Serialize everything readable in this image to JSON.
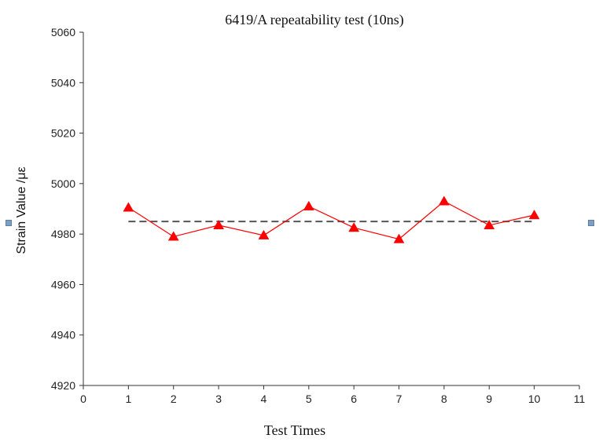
{
  "chart_data": {
    "type": "line",
    "title": "6419/A repeatability test (10ns)",
    "xlabel": "Test Times",
    "ylabel": "Strain Value /με",
    "xlim": [
      0,
      11
    ],
    "ylim": [
      4920,
      5060
    ],
    "x_ticks": [
      0,
      1,
      2,
      3,
      4,
      5,
      6,
      7,
      8,
      9,
      10,
      11
    ],
    "y_ticks": [
      4920,
      4940,
      4960,
      4980,
      5000,
      5020,
      5040,
      5060
    ],
    "grid": false,
    "legend": "none",
    "series": [
      {
        "color": "#ff0000",
        "marker": "triangle",
        "x": [
          1,
          2,
          3,
          4,
          5,
          6,
          7,
          8,
          9,
          10
        ],
        "y": [
          4990.5,
          4979,
          4983.5,
          4979.5,
          4991,
          4982.5,
          4978,
          4993,
          4983.5,
          4987.5
        ]
      }
    ],
    "reference_line": {
      "style": "dashed",
      "color": "#555555",
      "y": 4985,
      "x_range": [
        1,
        10
      ]
    }
  }
}
